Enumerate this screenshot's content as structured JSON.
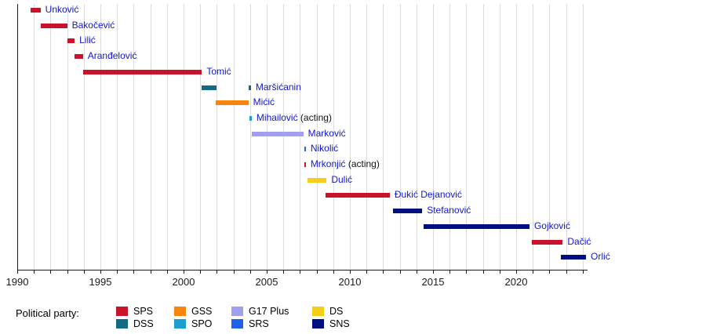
{
  "legend": {
    "title": "Political party:",
    "columns": [
      [
        "SPS",
        "DSS"
      ],
      [
        "GSS",
        "SPO"
      ],
      [
        "G17 Plus",
        "SRS"
      ],
      [
        "DS",
        "SNS"
      ]
    ]
  },
  "chart_data": {
    "type": "timeline",
    "x_axis": {
      "min": 1990,
      "max": 2024.3,
      "major_tick_labels": [
        "1990",
        "1995",
        "2000",
        "2005",
        "2010",
        "2015",
        "2020"
      ],
      "major_tick_years": [
        1990,
        1995,
        2000,
        2005,
        2010,
        2015,
        2020
      ],
      "minor_tick_interval": 1,
      "gridlines": true
    },
    "parties": {
      "SPS": "#C9122B",
      "DSS": "#136A83",
      "GSS": "#F8850C",
      "SPO": "#1B9FD0",
      "G17 Plus": "#A0A0EF",
      "SRS": "#2160EA",
      "DS": "#F7CE17",
      "SNS": "#000F80"
    },
    "label_color": "#1116CC",
    "rows": [
      {
        "name": "Unković",
        "party": "SPS",
        "terms": [
          [
            1990.8,
            1991.4
          ]
        ]
      },
      {
        "name": "Bakočević",
        "party": "SPS",
        "terms": [
          [
            1991.4,
            1993.0
          ]
        ]
      },
      {
        "name": "Lilić",
        "party": "SPS",
        "terms": [
          [
            1993.0,
            1993.45
          ]
        ]
      },
      {
        "name": "Aranđelović",
        "party": "SPS",
        "terms": [
          [
            1993.45,
            1993.95
          ]
        ]
      },
      {
        "name": "Tomić",
        "party": "SPS",
        "terms": [
          [
            1993.95,
            2001.1
          ]
        ]
      },
      {
        "name": "Maršićanin",
        "party": "DSS",
        "terms": [
          [
            2001.1,
            2002.0
          ],
          [
            2003.9,
            2004.05
          ]
        ]
      },
      {
        "name": "Mićić",
        "party": "GSS",
        "terms": [
          [
            2001.95,
            2003.9
          ]
        ]
      },
      {
        "name": "Mihailović",
        "party": "SPO",
        "qualifier": "(acting)",
        "terms": [
          [
            2003.95,
            2004.1
          ]
        ]
      },
      {
        "name": "Marković",
        "party": "G17 Plus",
        "terms": [
          [
            2004.1,
            2007.2
          ]
        ]
      },
      {
        "name": "Nikolić",
        "party": "SRS",
        "terms": [
          [
            2007.25,
            2007.35
          ]
        ]
      },
      {
        "name": "Mrkonjić",
        "party": "SPS",
        "qualifier": "(acting)",
        "terms": [
          [
            2007.25,
            2007.35
          ]
        ]
      },
      {
        "name": "Dulić",
        "party": "DS",
        "terms": [
          [
            2007.45,
            2008.6
          ]
        ]
      },
      {
        "name": "Đukić Dejanović",
        "party": "SPS",
        "terms": [
          [
            2008.55,
            2012.4
          ]
        ]
      },
      {
        "name": "Stefanović",
        "party": "SNS",
        "terms": [
          [
            2012.6,
            2014.35
          ]
        ]
      },
      {
        "name": "Gojković",
        "party": "SNS",
        "terms": [
          [
            2014.45,
            2020.8
          ]
        ]
      },
      {
        "name": "Dačić",
        "party": "SPS",
        "terms": [
          [
            2020.95,
            2022.8
          ]
        ]
      },
      {
        "name": "Orlić",
        "party": "SNS",
        "terms": [
          [
            2022.7,
            2024.2
          ]
        ]
      }
    ]
  }
}
